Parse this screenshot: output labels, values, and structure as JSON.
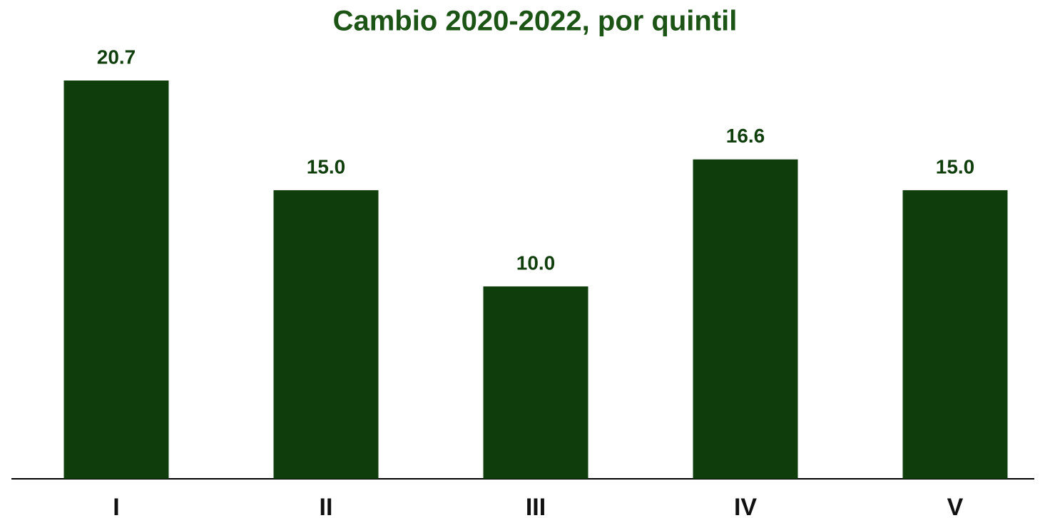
{
  "chart_data": {
    "type": "bar",
    "title": "Cambio 2020-2022, por quintil",
    "categories": [
      "I",
      "II",
      "III",
      "IV",
      "V"
    ],
    "values": [
      20.7,
      15.0,
      10.0,
      16.6,
      15.0
    ],
    "value_labels": [
      "20.7",
      "15.0",
      "10.0",
      "16.6",
      "15.0"
    ],
    "color": "#0f3d0c"
  }
}
